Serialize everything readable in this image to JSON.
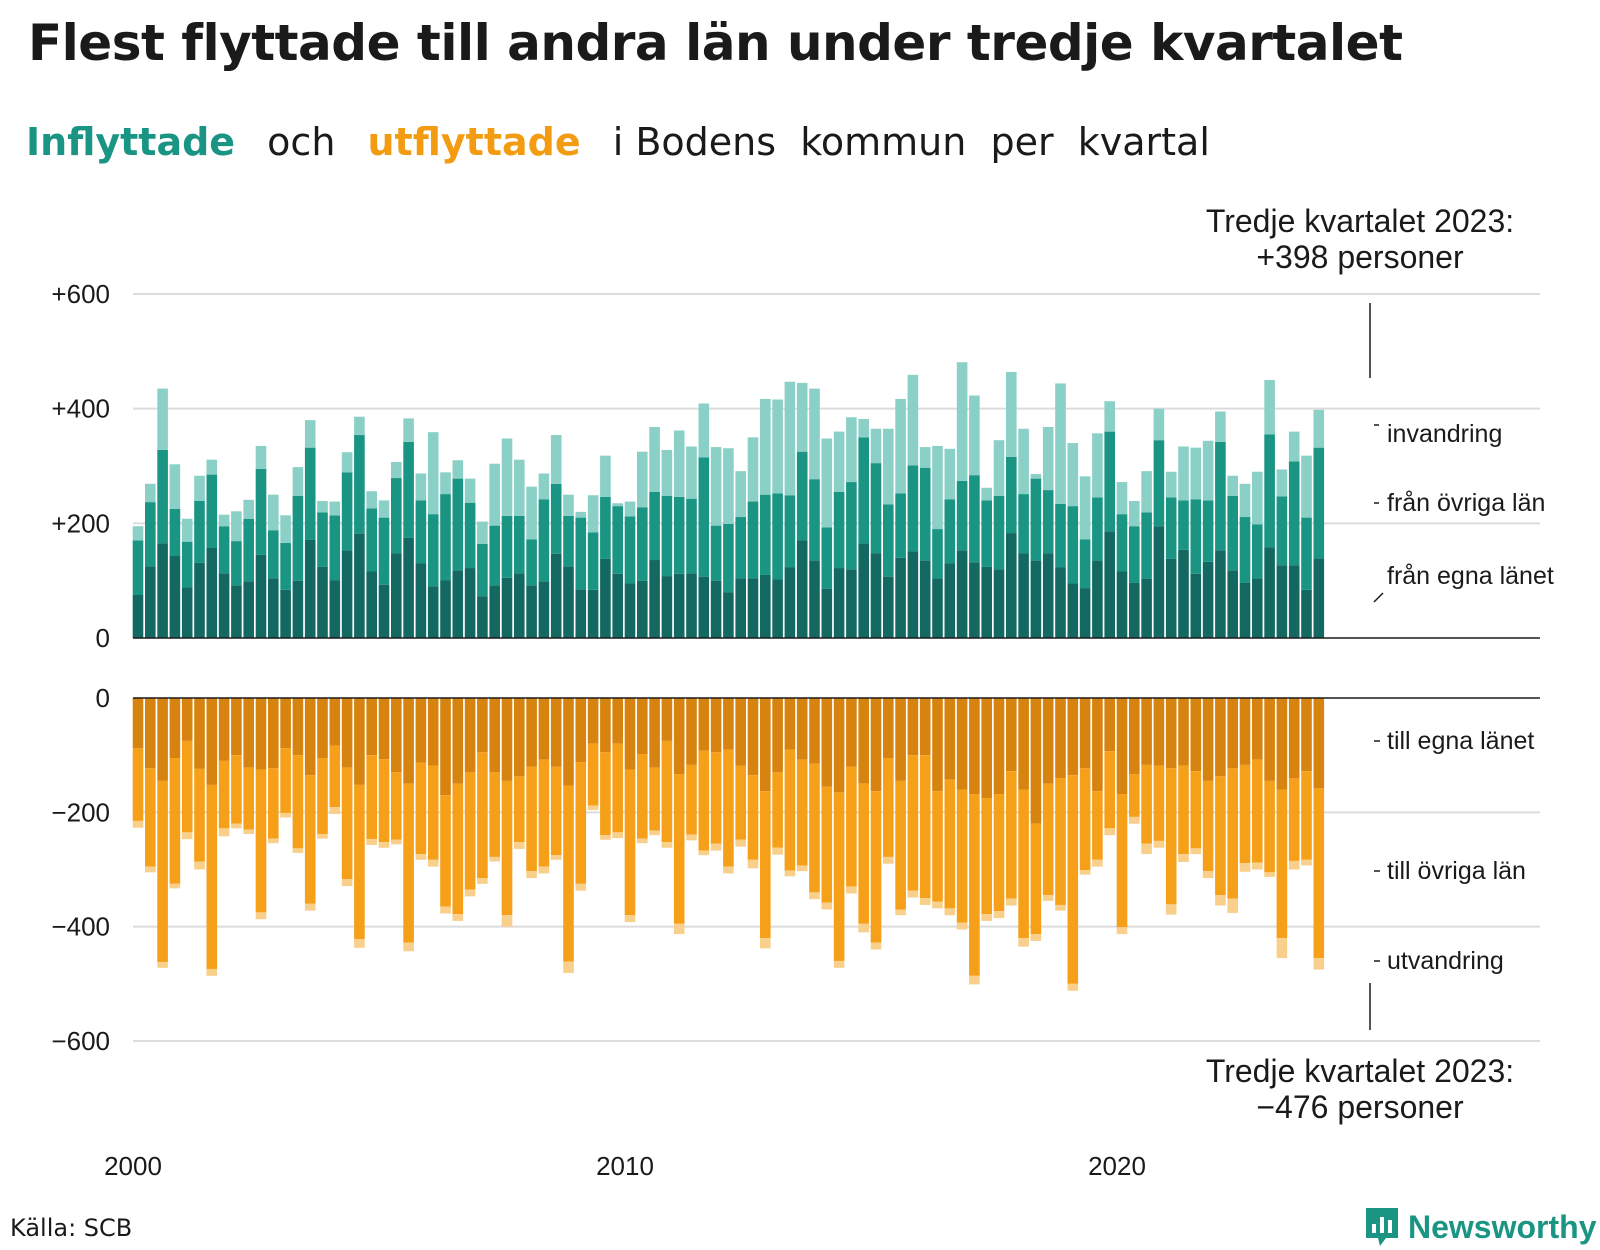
{
  "title": "Flest flyttade till andra län under tredje kvartalet",
  "subtitle": {
    "part1": "Inflyttade",
    "part2": "och",
    "part3": "utflyttade",
    "part4": "i Bodens  kommun  per  kvartal"
  },
  "annotations": {
    "top_line1": "Tredje kvartalet 2023:",
    "top_line2": "+398 personer",
    "bottom_line1": "Tredje kvartalet 2023:",
    "bottom_line2": "−476 personer"
  },
  "source": "Källa: SCB",
  "brand": "Newsworthy",
  "colors": {
    "in_own": "#136961",
    "in_other": "#1a9483",
    "in_immigration": "#8ad0c6",
    "out_own": "#d6830f",
    "out_other": "#f6a01a",
    "out_emigration": "#f9cf8c",
    "brand": "#1a9483"
  },
  "chart_data": {
    "type": "bar",
    "stacked": true,
    "x_tick_labels": [
      "2000",
      "2010",
      "2020"
    ],
    "inflow": {
      "yticks": [
        0,
        200,
        400,
        600
      ],
      "ytick_labels": [
        "0",
        "+200",
        "+400",
        "+600"
      ],
      "ylim": [
        0,
        600
      ],
      "series_labels": [
        "från egna länet",
        "från övriga län",
        "invandring"
      ],
      "quarters": [
        [
          75,
          95,
          25
        ],
        [
          125,
          112,
          32
        ],
        [
          165,
          163,
          107
        ],
        [
          143,
          82,
          78
        ],
        [
          88,
          80,
          40
        ],
        [
          131,
          108,
          44
        ],
        [
          157,
          128,
          26
        ],
        [
          113,
          82,
          20
        ],
        [
          92,
          77,
          52
        ],
        [
          99,
          109,
          33
        ],
        [
          145,
          150,
          40
        ],
        [
          104,
          84,
          62
        ],
        [
          84,
          82,
          48
        ],
        [
          100,
          148,
          50
        ],
        [
          171,
          161,
          48
        ],
        [
          124,
          95,
          20
        ],
        [
          101,
          113,
          24
        ],
        [
          153,
          136,
          35
        ],
        [
          182,
          172,
          32
        ],
        [
          116,
          110,
          30
        ],
        [
          93,
          117,
          30
        ],
        [
          148,
          131,
          28
        ],
        [
          175,
          167,
          41
        ],
        [
          130,
          110,
          47
        ],
        [
          90,
          126,
          143
        ],
        [
          101,
          150,
          38
        ],
        [
          118,
          160,
          32
        ],
        [
          122,
          114,
          42
        ],
        [
          73,
          91,
          39
        ],
        [
          92,
          104,
          108
        ],
        [
          105,
          108,
          135
        ],
        [
          113,
          100,
          98
        ],
        [
          92,
          80,
          92
        ],
        [
          99,
          143,
          45
        ],
        [
          147,
          122,
          85
        ],
        [
          125,
          88,
          37
        ],
        [
          85,
          125,
          10
        ],
        [
          84,
          100,
          65
        ],
        [
          138,
          108,
          72
        ],
        [
          112,
          118,
          5
        ],
        [
          95,
          117,
          26
        ],
        [
          100,
          128,
          97
        ],
        [
          136,
          119,
          113
        ],
        [
          108,
          140,
          80
        ],
        [
          112,
          134,
          116
        ],
        [
          113,
          130,
          91
        ],
        [
          107,
          208,
          94
        ],
        [
          100,
          96,
          137
        ],
        [
          80,
          119,
          132
        ],
        [
          104,
          107,
          80
        ],
        [
          104,
          134,
          112
        ],
        [
          110,
          140,
          167
        ],
        [
          102,
          150,
          164
        ],
        [
          123,
          126,
          198
        ],
        [
          170,
          155,
          120
        ],
        [
          135,
          142,
          158
        ],
        [
          86,
          107,
          155
        ],
        [
          122,
          133,
          105
        ],
        [
          120,
          152,
          113
        ],
        [
          165,
          185,
          32
        ],
        [
          148,
          157,
          60
        ],
        [
          107,
          126,
          132
        ],
        [
          140,
          112,
          165
        ],
        [
          151,
          150,
          158
        ],
        [
          135,
          162,
          36
        ],
        [
          104,
          86,
          145
        ],
        [
          130,
          112,
          88
        ],
        [
          153,
          121,
          207
        ],
        [
          132,
          152,
          139
        ],
        [
          124,
          116,
          22
        ],
        [
          120,
          128,
          97
        ],
        [
          183,
          133,
          148
        ],
        [
          148,
          103,
          114
        ],
        [
          135,
          143,
          8
        ],
        [
          148,
          110,
          110
        ],
        [
          123,
          111,
          210
        ],
        [
          95,
          135,
          110
        ],
        [
          87,
          85,
          110
        ],
        [
          135,
          110,
          112
        ],
        [
          186,
          174,
          53
        ],
        [
          116,
          100,
          56
        ],
        [
          96,
          99,
          44
        ],
        [
          103,
          116,
          72
        ],
        [
          195,
          150,
          55
        ],
        [
          138,
          107,
          45
        ],
        [
          154,
          86,
          94
        ],
        [
          112,
          130,
          90
        ],
        [
          133,
          107,
          104
        ],
        [
          153,
          189,
          53
        ],
        [
          118,
          130,
          35
        ],
        [
          96,
          115,
          58
        ],
        [
          104,
          94,
          92
        ],
        [
          158,
          197,
          95
        ],
        [
          127,
          120,
          47
        ],
        [
          127,
          181,
          52
        ],
        [
          84,
          126,
          108
        ],
        [
          139,
          193,
          66
        ]
      ]
    },
    "outflow": {
      "yticks": [
        0,
        -200,
        -400,
        -600
      ],
      "ytick_labels": [
        "0",
        "−200",
        "−400",
        "−600"
      ],
      "ylim": [
        -600,
        0
      ],
      "series_labels": [
        "till egna länet",
        "till övriga län",
        "utvandring"
      ],
      "quarters": [
        [
          88,
          127,
          12
        ],
        [
          123,
          172,
          10
        ],
        [
          145,
          317,
          10
        ],
        [
          105,
          220,
          8
        ],
        [
          75,
          160,
          12
        ],
        [
          124,
          162,
          14
        ],
        [
          152,
          322,
          12
        ],
        [
          110,
          118,
          14
        ],
        [
          100,
          120,
          8
        ],
        [
          122,
          108,
          8
        ],
        [
          125,
          250,
          12
        ],
        [
          123,
          123,
          8
        ],
        [
          88,
          113,
          8
        ],
        [
          100,
          163,
          8
        ],
        [
          135,
          225,
          12
        ],
        [
          105,
          133,
          8
        ],
        [
          83,
          108,
          12
        ],
        [
          122,
          195,
          12
        ],
        [
          152,
          270,
          15
        ],
        [
          100,
          147,
          10
        ],
        [
          107,
          145,
          10
        ],
        [
          130,
          118,
          8
        ],
        [
          150,
          278,
          15
        ],
        [
          113,
          160,
          10
        ],
        [
          118,
          165,
          12
        ],
        [
          170,
          195,
          12
        ],
        [
          150,
          228,
          12
        ],
        [
          130,
          205,
          12
        ],
        [
          95,
          220,
          10
        ],
        [
          130,
          148,
          8
        ],
        [
          145,
          235,
          20
        ],
        [
          137,
          115,
          12
        ],
        [
          120,
          183,
          12
        ],
        [
          108,
          187,
          12
        ],
        [
          120,
          155,
          8
        ],
        [
          153,
          308,
          20
        ],
        [
          112,
          213,
          12
        ],
        [
          80,
          108,
          8
        ],
        [
          95,
          145,
          8
        ],
        [
          80,
          155,
          10
        ],
        [
          125,
          255,
          12
        ],
        [
          98,
          148,
          8
        ],
        [
          122,
          110,
          8
        ],
        [
          75,
          177,
          10
        ],
        [
          133,
          262,
          18
        ],
        [
          117,
          122,
          10
        ],
        [
          92,
          175,
          8
        ],
        [
          95,
          160,
          12
        ],
        [
          90,
          205,
          12
        ],
        [
          118,
          130,
          12
        ],
        [
          135,
          148,
          15
        ],
        [
          163,
          257,
          18
        ],
        [
          130,
          132,
          12
        ],
        [
          90,
          212,
          10
        ],
        [
          108,
          185,
          10
        ],
        [
          115,
          225,
          12
        ],
        [
          155,
          203,
          12
        ],
        [
          165,
          295,
          12
        ],
        [
          120,
          210,
          12
        ],
        [
          150,
          245,
          15
        ],
        [
          163,
          265,
          12
        ],
        [
          105,
          173,
          12
        ],
        [
          145,
          225,
          10
        ],
        [
          100,
          237,
          12
        ],
        [
          100,
          250,
          12
        ],
        [
          163,
          193,
          12
        ],
        [
          143,
          225,
          12
        ],
        [
          160,
          233,
          12
        ],
        [
          168,
          318,
          15
        ],
        [
          175,
          203,
          12
        ],
        [
          168,
          205,
          12
        ],
        [
          128,
          223,
          12
        ],
        [
          160,
          260,
          15
        ],
        [
          220,
          193,
          12
        ],
        [
          150,
          195,
          10
        ],
        [
          140,
          222,
          10
        ],
        [
          135,
          365,
          12
        ],
        [
          123,
          178,
          8
        ],
        [
          163,
          120,
          12
        ],
        [
          93,
          135,
          12
        ],
        [
          168,
          233,
          12
        ],
        [
          133,
          75,
          12
        ],
        [
          117,
          138,
          18
        ],
        [
          118,
          132,
          12
        ],
        [
          123,
          238,
          18
        ],
        [
          118,
          155,
          14
        ],
        [
          128,
          135,
          10
        ],
        [
          145,
          158,
          12
        ],
        [
          137,
          208,
          18
        ],
        [
          123,
          228,
          25
        ],
        [
          117,
          172,
          15
        ],
        [
          108,
          180,
          12
        ],
        [
          145,
          160,
          8
        ],
        [
          160,
          260,
          35
        ],
        [
          140,
          145,
          15
        ],
        [
          128,
          155,
          10
        ],
        [
          158,
          297,
          20
        ]
      ]
    }
  }
}
